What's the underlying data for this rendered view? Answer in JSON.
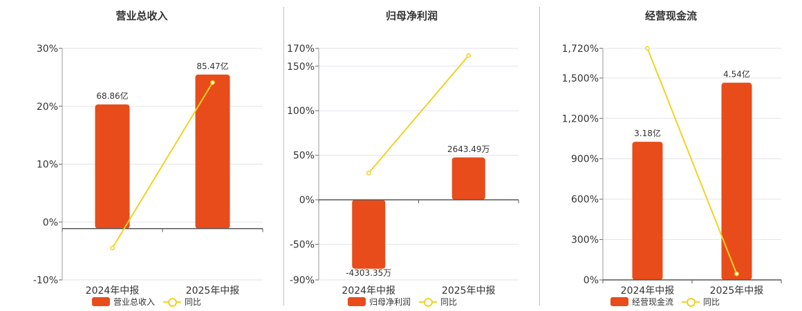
{
  "colors": {
    "bar": "#e84c1b",
    "line": "#f2d220"
  },
  "legend": {
    "line_label": "同比"
  },
  "chart_data": [
    {
      "type": "bar",
      "title": "营业总收入",
      "categories": [
        "2024年中报",
        "2025年中报"
      ],
      "series": [
        {
          "name": "营业总收入",
          "type": "bar",
          "axis": "right-hidden",
          "values": [
            68.86,
            85.47
          ],
          "labels": [
            "68.86亿",
            "85.47亿"
          ]
        },
        {
          "name": "同比",
          "type": "line",
          "axis": "left",
          "values": [
            -4.5,
            24.1
          ]
        }
      ],
      "y_axis": {
        "ticks": [
          -10,
          0,
          10,
          20,
          30
        ],
        "tick_labels": [
          "-10%",
          "0%",
          "10%",
          "20%",
          "30%"
        ],
        "ylim": [
          -10,
          30
        ]
      },
      "bar_axis": {
        "ylim": [
          -28.5,
          100
        ]
      },
      "grid": true,
      "legend_position": "bottom"
    },
    {
      "type": "bar",
      "title": "归母净利润",
      "categories": [
        "2024年中报",
        "2025年中报"
      ],
      "series": [
        {
          "name": "归母净利润",
          "type": "bar",
          "axis": "right-hidden",
          "values": [
            -4303.35,
            2643.49
          ],
          "labels": [
            "-4303.35万",
            "2643.49万"
          ]
        },
        {
          "name": "同比",
          "type": "line",
          "axis": "left",
          "values": [
            30,
            162
          ]
        }
      ],
      "y_axis": {
        "ticks": [
          -90,
          -50,
          0,
          50,
          100,
          150,
          170
        ],
        "tick_labels": [
          "-90%",
          "-50%",
          "0%",
          "50%",
          "100%",
          "150%",
          "170%"
        ],
        "ylim": [
          -90,
          170
        ]
      },
      "bar_axis": {
        "ylim": [
          -5000,
          9450
        ]
      },
      "grid": true,
      "legend_position": "bottom"
    },
    {
      "type": "bar",
      "title": "经营现金流",
      "categories": [
        "2024年中报",
        "2025年中报"
      ],
      "series": [
        {
          "name": "经营现金流",
          "type": "bar",
          "axis": "right-hidden",
          "values": [
            3.18,
            4.54
          ],
          "labels": [
            "3.18亿",
            "4.54亿"
          ]
        },
        {
          "name": "同比",
          "type": "line",
          "axis": "left",
          "values": [
            1720,
            45
          ]
        }
      ],
      "y_axis": {
        "ticks": [
          0,
          300,
          600,
          900,
          1200,
          1500,
          1720
        ],
        "tick_labels": [
          "0%",
          "300%",
          "600%",
          "900%",
          "1,200%",
          "1,500%",
          "1,720%"
        ],
        "ylim": [
          0,
          1720
        ]
      },
      "bar_axis": {
        "ylim": [
          0,
          5.33
        ]
      },
      "grid": true,
      "legend_position": "bottom"
    }
  ]
}
